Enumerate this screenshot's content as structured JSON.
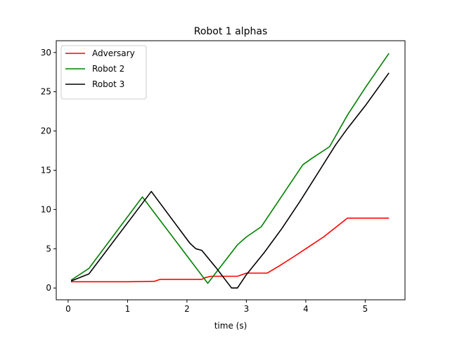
{
  "chart_data": {
    "type": "line",
    "title": "Robot 1 alphas",
    "xlabel": "time (s)",
    "ylabel": "",
    "xlim": [
      -0.2,
      5.67
    ],
    "ylim": [
      -1.5,
      31.5
    ],
    "xticks": [
      0,
      1,
      2,
      3,
      4,
      5
    ],
    "yticks": [
      0,
      5,
      10,
      15,
      20,
      25,
      30
    ],
    "xtick_labels": [
      "0",
      "1",
      "2",
      "3",
      "4",
      "5"
    ],
    "ytick_labels": [
      "0",
      "5",
      "10",
      "15",
      "20",
      "25",
      "30"
    ],
    "grid": false,
    "legend": "top-left",
    "series": [
      {
        "name": "Adversary",
        "color": "#ff0000",
        "x": [
          0.05,
          0.3,
          1.0,
          1.45,
          1.55,
          2.25,
          2.3,
          2.4,
          2.8,
          2.85,
          3.0,
          3.35,
          3.55,
          3.8,
          4.0,
          4.3,
          4.5,
          4.7,
          5.0,
          5.4
        ],
        "y": [
          0.8,
          0.8,
          0.8,
          0.85,
          1.1,
          1.1,
          1.3,
          1.5,
          1.5,
          1.5,
          1.9,
          1.9,
          2.8,
          4.0,
          5.0,
          6.5,
          7.7,
          8.9,
          8.9,
          8.9
        ]
      },
      {
        "name": "Robot 2",
        "color": "#008000",
        "x": [
          0.05,
          0.35,
          1.25,
          2.35,
          2.85,
          3.0,
          3.25,
          3.95,
          4.1,
          4.4,
          4.7,
          5.0,
          5.4
        ],
        "y": [
          1.0,
          2.5,
          11.6,
          0.6,
          5.5,
          6.5,
          7.8,
          15.7,
          16.5,
          18.0,
          22.0,
          25.5,
          29.9
        ]
      },
      {
        "name": "Robot 3",
        "color": "#000000",
        "x": [
          0.05,
          0.35,
          1.4,
          2.05,
          2.15,
          2.25,
          2.5,
          2.75,
          2.85,
          3.0,
          3.3,
          3.6,
          3.9,
          4.2,
          4.5,
          4.7,
          5.0,
          5.4
        ],
        "y": [
          0.9,
          1.8,
          12.3,
          5.7,
          5.0,
          4.8,
          2.5,
          0.0,
          0.0,
          1.7,
          4.5,
          7.6,
          11.0,
          14.6,
          18.2,
          20.3,
          23.2,
          27.4
        ]
      }
    ]
  }
}
